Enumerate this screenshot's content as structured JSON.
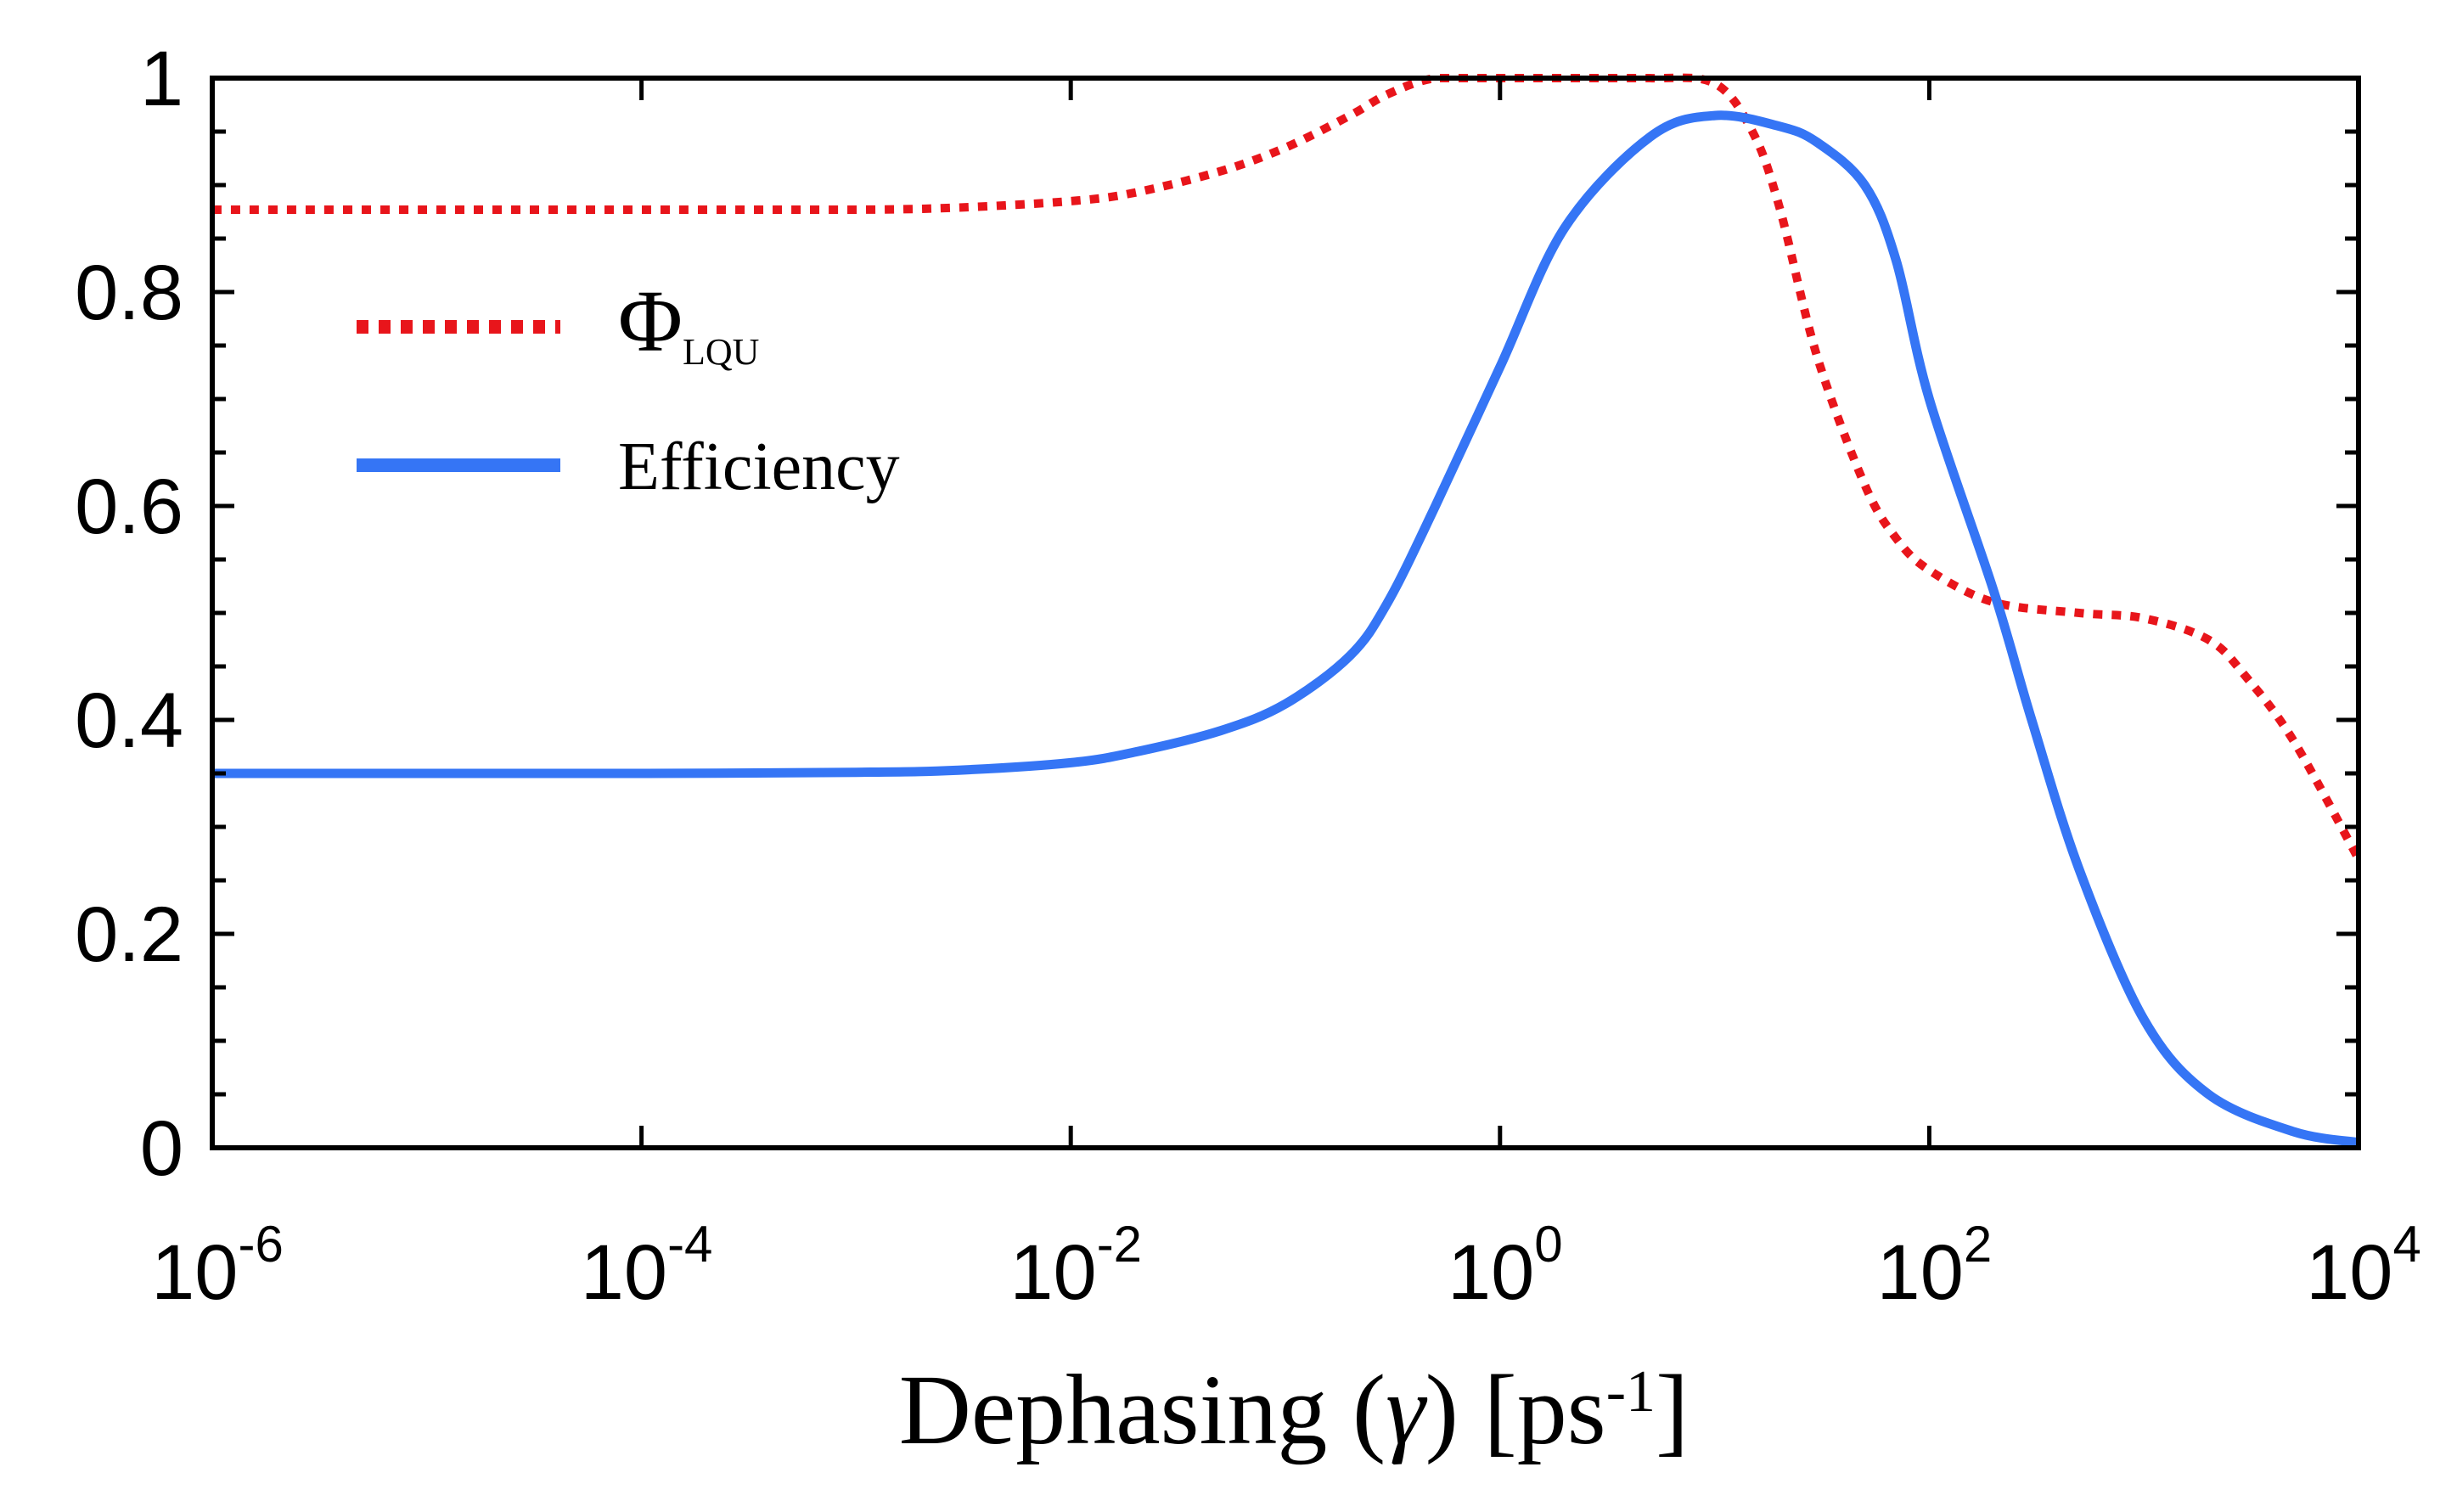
{
  "chart_data": {
    "type": "line",
    "title": "",
    "xscale": "log",
    "xlim": [
      1e-06,
      10000
    ],
    "ylim": [
      0,
      1
    ],
    "xlabel": {
      "prefix": "Dephasing (",
      "symbol": "γ",
      "suffix": ") [ps",
      "exponent": "-1",
      "close": "]"
    },
    "ylabel": "",
    "x_ticks": [
      {
        "value": 1e-06,
        "base": "10",
        "exp": "-6"
      },
      {
        "value": 0.0001,
        "base": "10",
        "exp": "-4"
      },
      {
        "value": 0.01,
        "base": "10",
        "exp": "-2"
      },
      {
        "value": 1,
        "base": "10",
        "exp": "0"
      },
      {
        "value": 100,
        "base": "10",
        "exp": "2"
      },
      {
        "value": 10000,
        "base": "10",
        "exp": "4"
      }
    ],
    "y_ticks": [
      {
        "value": 0,
        "label": "0"
      },
      {
        "value": 0.2,
        "label": "0.2"
      },
      {
        "value": 0.4,
        "label": "0.4"
      },
      {
        "value": 0.6,
        "label": "0.6"
      },
      {
        "value": 0.8,
        "label": "0.8"
      },
      {
        "value": 1,
        "label": "1"
      }
    ],
    "grid": false,
    "legend_position": "upper-left",
    "series": [
      {
        "name": "Φ_LQU",
        "label_main": "Φ",
        "label_sub": "LQU",
        "style": "dotted",
        "color": "#e8151b",
        "x": [
          1e-06,
          1e-05,
          0.0001,
          0.001,
          0.003,
          0.01,
          0.02,
          0.05,
          0.1,
          0.2,
          0.3,
          0.5,
          1,
          2,
          5,
          10,
          15,
          20,
          30,
          50,
          70,
          100,
          200,
          500,
          1000,
          2000,
          3000,
          5000,
          10000
        ],
        "y": [
          0.877,
          0.877,
          0.877,
          0.877,
          0.879,
          0.885,
          0.893,
          0.913,
          0.935,
          0.965,
          0.985,
          1.0,
          1.0,
          1.0,
          1.0,
          0.995,
          0.95,
          0.88,
          0.74,
          0.62,
          0.57,
          0.54,
          0.51,
          0.5,
          0.495,
          0.475,
          0.44,
          0.38,
          0.27
        ]
      },
      {
        "name": "Efficiency",
        "label_main": "Efficiency",
        "label_sub": "",
        "style": "solid",
        "color": "#3575f5",
        "x": [
          1e-06,
          1e-05,
          0.0001,
          0.001,
          0.003,
          0.01,
          0.02,
          0.05,
          0.1,
          0.2,
          0.3,
          0.5,
          1,
          2,
          5,
          10,
          20,
          30,
          50,
          70,
          100,
          200,
          300,
          500,
          1000,
          2000,
          5000,
          10000
        ],
        "y": [
          0.35,
          0.35,
          0.35,
          0.351,
          0.353,
          0.36,
          0.37,
          0.39,
          0.415,
          0.46,
          0.51,
          0.6,
          0.73,
          0.86,
          0.945,
          0.965,
          0.955,
          0.94,
          0.9,
          0.83,
          0.7,
          0.52,
          0.4,
          0.26,
          0.12,
          0.05,
          0.015,
          0.005
        ]
      }
    ]
  }
}
